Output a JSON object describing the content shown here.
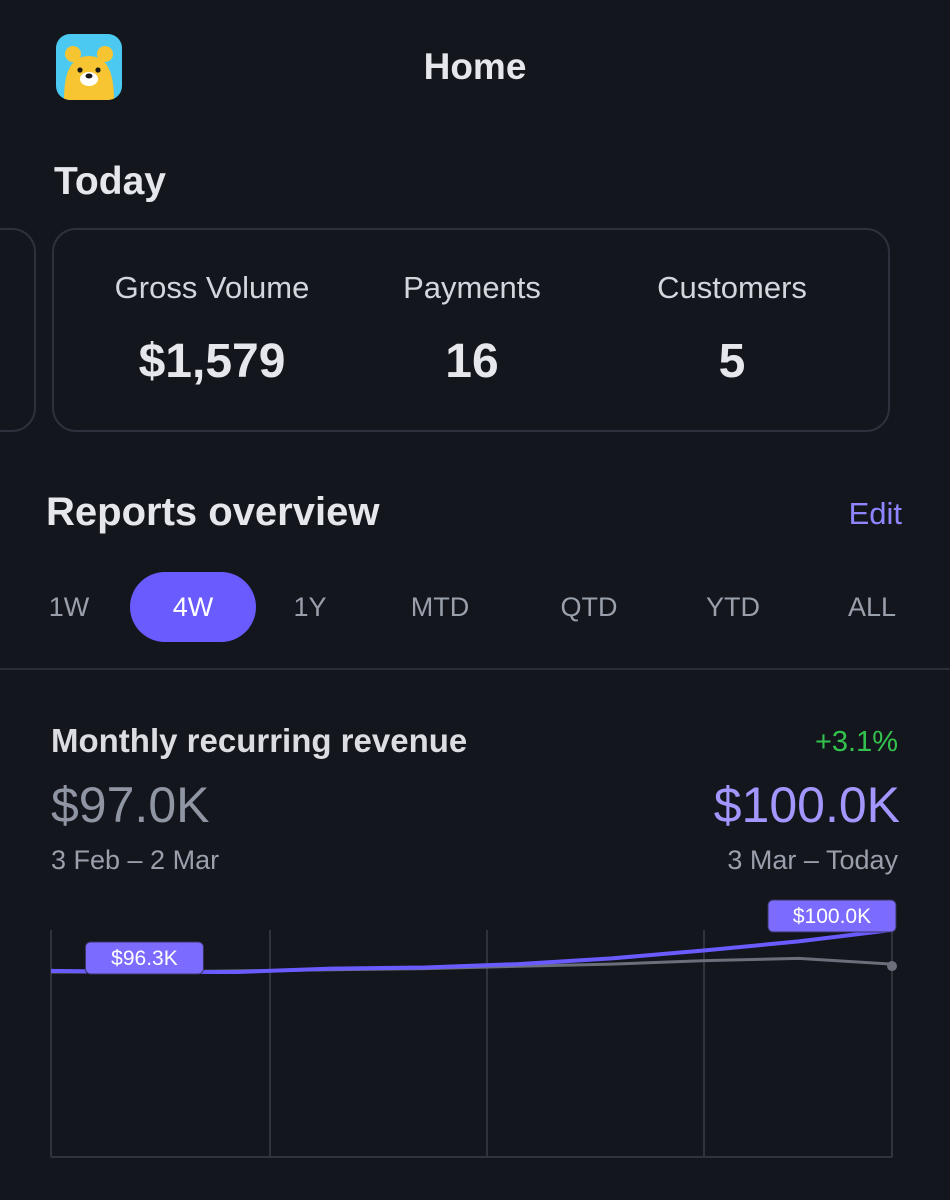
{
  "header": {
    "title": "Home",
    "app_icon": "bear-icon"
  },
  "today": {
    "title": "Today",
    "stats": [
      {
        "label": "Gross Volume",
        "value": "$1,579"
      },
      {
        "label": "Payments",
        "value": "16"
      },
      {
        "label": "Customers",
        "value": "5"
      }
    ]
  },
  "reports": {
    "title": "Reports overview",
    "edit_label": "Edit",
    "ranges": [
      "1W",
      "4W",
      "1Y",
      "MTD",
      "QTD",
      "YTD",
      "ALL"
    ],
    "selected_range": "4W"
  },
  "metric": {
    "title": "Monthly recurring revenue",
    "change": "+3.1%",
    "previous_value": "$97.0K",
    "current_value": "$100.0K",
    "previous_range": "3 Feb – 2 Mar",
    "current_range": "3 Mar – Today"
  },
  "colors": {
    "accent": "#6a5bff",
    "accent_light": "#a197ff",
    "positive": "#33c24d",
    "background": "#14161d",
    "previous_line": "#6b6f7a"
  },
  "chart_data": {
    "type": "line",
    "series": [
      {
        "values": [
          96.4,
          96.3,
          96.3,
          96.6,
          96.7,
          97.0,
          97.5,
          98.2,
          99.0,
          100.0
        ]
      },
      {
        "values": [
          96.3,
          96.3,
          96.4,
          96.5,
          96.6,
          96.8,
          97.0,
          97.3,
          97.5,
          97.0
        ]
      }
    ],
    "ylim": [
      80,
      100
    ],
    "grid": true,
    "annotations": [
      {
        "index": 1,
        "label": "$96.3K"
      },
      {
        "index": 9,
        "label": "$100.0K"
      }
    ]
  }
}
